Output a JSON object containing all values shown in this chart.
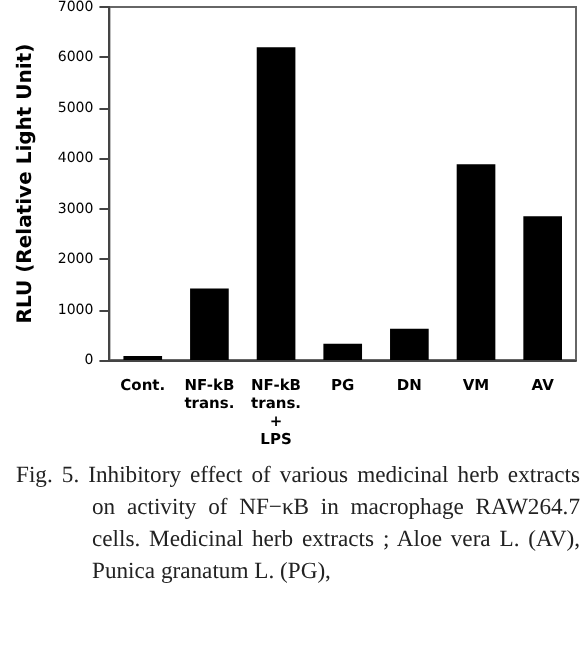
{
  "chart_data": {
    "type": "bar",
    "ylabel": "RLU (Relative Light Unit)",
    "categories": [
      "Cont.",
      "NF-kB\ntrans.",
      "NF-kB\ntrans.\n+\nLPS",
      "PG",
      "DN",
      "VM",
      "AV"
    ],
    "values": [
      80,
      1420,
      6200,
      320,
      620,
      3880,
      2850
    ],
    "color": "#000000",
    "ylim": [
      0,
      7000
    ],
    "yticks": [
      0,
      1000,
      2000,
      3000,
      4000,
      5000,
      6000,
      7000
    ],
    "grid": false,
    "annotations": [
      "Fig. 5. Inhibitory effect of various medicinal herb extracts on activity of NF−κB in macrophage RAW264.7 cells. Medicinal herb extracts ; Aloe vera L. (AV), Punica granatum L. (PG),"
    ]
  }
}
